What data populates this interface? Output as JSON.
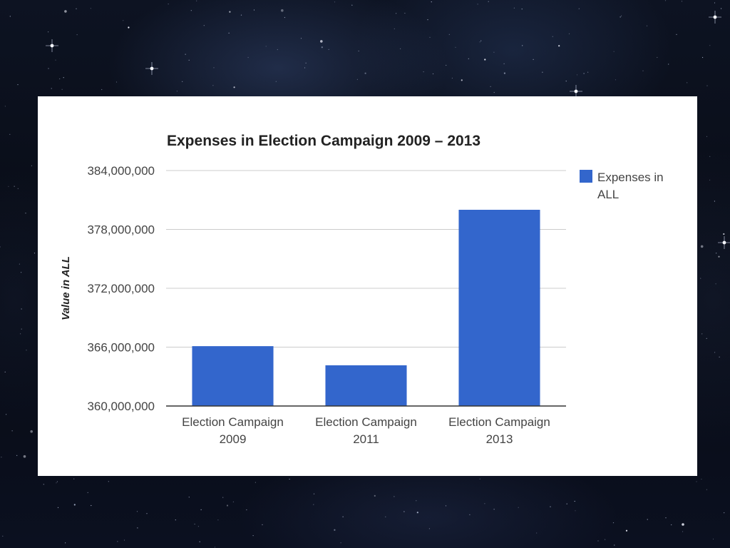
{
  "chart_data": {
    "type": "bar",
    "title": "Expenses in Election Campaign 2009 – 2013",
    "ylabel": "Value in ALL",
    "xlabel": "",
    "categories": [
      [
        "Election Campaign",
        "2009"
      ],
      [
        "Election Campaign",
        "2011"
      ],
      [
        "Election Campaign",
        "2013"
      ]
    ],
    "series": [
      {
        "name": "Expenses in ALL",
        "legend_lines": [
          "Expenses in",
          "ALL"
        ],
        "color": "#3366cc",
        "values": [
          366100000,
          364150000,
          380000000
        ]
      }
    ],
    "ylim": [
      360000000,
      384000000
    ],
    "yticks": [
      360000000,
      366000000,
      372000000,
      378000000,
      384000000
    ],
    "ytick_labels": [
      "360,000,000",
      "366,000,000",
      "372,000,000",
      "378,000,000",
      "384,000,000"
    ],
    "grid": true,
    "legend_position": "right"
  },
  "colors": {
    "bar": "#3366cc",
    "grid": "#cccccc",
    "baseline": "#333333",
    "background": "starfield"
  }
}
